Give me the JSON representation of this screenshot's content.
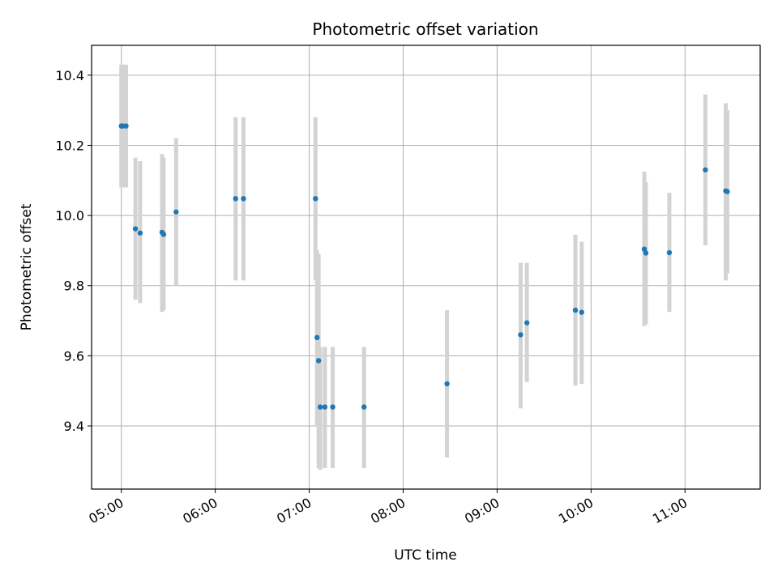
{
  "chart_data": {
    "type": "scatter",
    "title": "Photometric offset variation",
    "xlabel": "UTC time",
    "ylabel": "Photometric offset",
    "x_ticks": [
      "05:00",
      "06:00",
      "07:00",
      "08:00",
      "09:00",
      "10:00",
      "11:00"
    ],
    "y_ticks": [
      "9.4",
      "9.6",
      "9.8",
      "10.0",
      "10.2",
      "10.4"
    ],
    "xlim": [
      "04:41",
      "11:48"
    ],
    "ylim": [
      9.22,
      10.485
    ],
    "grid": true,
    "colors": {
      "point": "#1f77b4",
      "errorbar": "#d3d3d3",
      "grid": "#b0b0b0"
    },
    "points": [
      {
        "time": "05:00",
        "y": 10.255,
        "yerr_low": 10.08,
        "yerr_high": 10.43
      },
      {
        "time": "05:01",
        "y": 10.255,
        "yerr_low": 10.08,
        "yerr_high": 10.43
      },
      {
        "time": "05:03",
        "y": 10.255,
        "yerr_low": 10.08,
        "yerr_high": 10.43
      },
      {
        "time": "05:09",
        "y": 9.962,
        "yerr_low": 9.76,
        "yerr_high": 10.165
      },
      {
        "time": "05:12",
        "y": 9.95,
        "yerr_low": 9.75,
        "yerr_high": 10.155
      },
      {
        "time": "05:26",
        "y": 9.952,
        "yerr_low": 9.725,
        "yerr_high": 10.175
      },
      {
        "time": "05:27",
        "y": 9.946,
        "yerr_low": 9.73,
        "yerr_high": 10.165
      },
      {
        "time": "05:35",
        "y": 10.01,
        "yerr_low": 9.8,
        "yerr_high": 10.22
      },
      {
        "time": "06:13",
        "y": 10.048,
        "yerr_low": 9.815,
        "yerr_high": 10.28
      },
      {
        "time": "06:18",
        "y": 10.048,
        "yerr_low": 9.815,
        "yerr_high": 10.28
      },
      {
        "time": "07:04",
        "y": 10.048,
        "yerr_low": 9.815,
        "yerr_high": 10.28
      },
      {
        "time": "07:05",
        "y": 9.652,
        "yerr_low": 9.4,
        "yerr_high": 9.9
      },
      {
        "time": "07:06",
        "y": 9.586,
        "yerr_low": 9.28,
        "yerr_high": 9.89
      },
      {
        "time": "07:07",
        "y": 9.454,
        "yerr_low": 9.275,
        "yerr_high": 9.625
      },
      {
        "time": "07:10",
        "y": 9.454,
        "yerr_low": 9.28,
        "yerr_high": 9.625
      },
      {
        "time": "07:15",
        "y": 9.454,
        "yerr_low": 9.28,
        "yerr_high": 9.625
      },
      {
        "time": "07:35",
        "y": 9.454,
        "yerr_low": 9.28,
        "yerr_high": 9.625
      },
      {
        "time": "08:28",
        "y": 9.52,
        "yerr_low": 9.31,
        "yerr_high": 9.73
      },
      {
        "time": "09:15",
        "y": 9.66,
        "yerr_low": 9.45,
        "yerr_high": 9.865
      },
      {
        "time": "09:19",
        "y": 9.694,
        "yerr_low": 9.525,
        "yerr_high": 9.865
      },
      {
        "time": "09:50",
        "y": 9.73,
        "yerr_low": 9.515,
        "yerr_high": 9.945
      },
      {
        "time": "09:54",
        "y": 9.724,
        "yerr_low": 9.52,
        "yerr_high": 9.925
      },
      {
        "time": "10:34",
        "y": 9.904,
        "yerr_low": 9.685,
        "yerr_high": 10.125
      },
      {
        "time": "10:35",
        "y": 9.893,
        "yerr_low": 9.69,
        "yerr_high": 10.095
      },
      {
        "time": "10:50",
        "y": 9.894,
        "yerr_low": 9.725,
        "yerr_high": 10.065
      },
      {
        "time": "11:13",
        "y": 10.13,
        "yerr_low": 9.915,
        "yerr_high": 10.345
      },
      {
        "time": "11:26",
        "y": 10.07,
        "yerr_low": 9.815,
        "yerr_high": 10.32
      },
      {
        "time": "11:27",
        "y": 10.068,
        "yerr_low": 9.835,
        "yerr_high": 10.3
      }
    ]
  }
}
